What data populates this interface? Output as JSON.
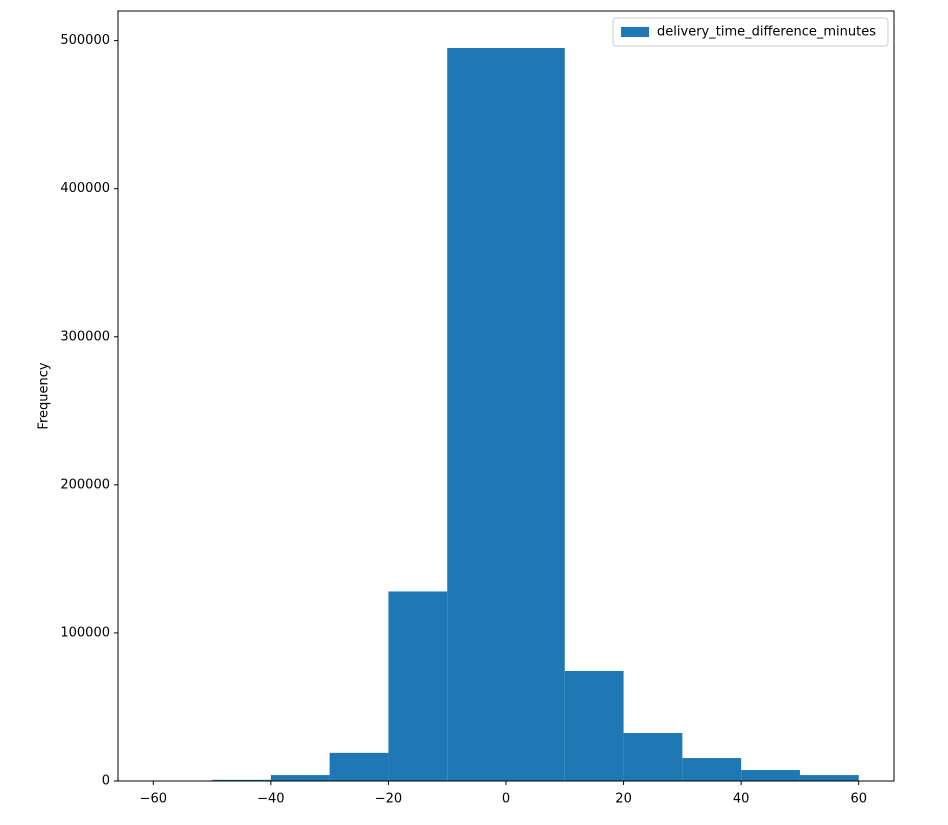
{
  "chart_data": {
    "type": "histogram",
    "ylabel": "Frequency",
    "bins": [
      -60,
      -50,
      -40,
      -30,
      -20,
      -10,
      0,
      10,
      20,
      30,
      40,
      50,
      60
    ],
    "series": [
      {
        "name": "delivery_time_difference_minutes",
        "color": "#1f77b4",
        "values": [
          100,
          800,
          4000,
          19000,
          128000,
          495000,
          495000,
          74300,
          32400,
          15500,
          7400,
          4000
        ]
      }
    ],
    "xlim": [
      -66,
      66
    ],
    "xticks": [
      {
        "value": -60,
        "label": "−60"
      },
      {
        "value": -40,
        "label": "−40"
      },
      {
        "value": -20,
        "label": "−20"
      },
      0,
      20,
      40,
      60
    ],
    "ylim": [
      0,
      520000
    ],
    "yticks": [
      0,
      100000,
      200000,
      300000,
      400000,
      500000
    ],
    "grid": false,
    "legend": "upper right"
  }
}
